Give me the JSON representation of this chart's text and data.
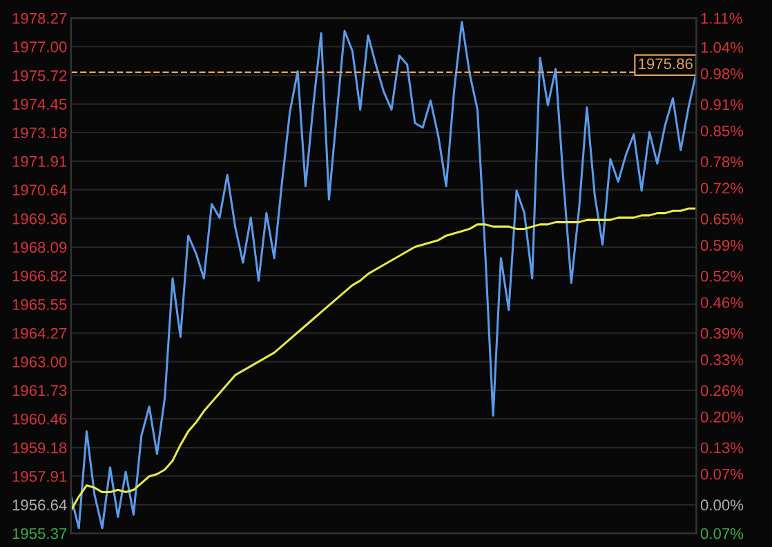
{
  "chart_data": {
    "type": "line",
    "grid": "y",
    "categories": [
      null,
      null,
      null,
      null,
      null,
      null,
      null,
      null,
      null,
      null,
      null,
      null,
      null,
      null,
      null,
      null,
      null,
      null,
      null,
      null,
      null,
      null,
      null,
      null,
      null,
      null,
      null,
      null,
      null,
      null,
      null,
      null,
      null,
      null,
      null,
      null,
      null,
      null,
      null,
      null,
      null,
      null,
      null,
      null,
      null,
      null,
      null,
      null,
      null,
      null,
      null,
      null,
      null,
      null,
      null,
      null,
      null,
      null,
      null,
      null,
      null,
      null,
      null,
      null,
      null,
      null,
      null,
      null,
      null,
      null,
      null,
      null,
      null,
      null,
      null,
      null,
      null,
      null,
      null,
      null,
      null
    ],
    "ylim": [
      1955.37,
      1978.27
    ],
    "yticks": [
      1955.37,
      1956.64,
      1957.91,
      1959.18,
      1960.46,
      1961.73,
      {
        "value": 1963,
        "label": "1963.00"
      },
      1964.27,
      1965.55,
      1966.82,
      1968.09,
      1969.36,
      1970.64,
      1971.91,
      1973.18,
      1974.45,
      1975.72,
      {
        "value": 1977,
        "label": "1977.00"
      },
      1978.27
    ],
    "y2lim": [
      -0.065,
      1.106
    ],
    "y2ticks": [
      {
        "value": -0.065,
        "label": "0.07%"
      },
      {
        "value": 0,
        "label": "0.00%"
      },
      {
        "value": 0.07,
        "label": "0.07%"
      },
      {
        "value": 0.13,
        "label": "0.13%"
      },
      {
        "value": 0.2,
        "label": "0.20%"
      },
      {
        "value": 0.26,
        "label": "0.26%"
      },
      {
        "value": 0.33,
        "label": "0.33%"
      },
      {
        "value": 0.39,
        "label": "0.39%"
      },
      {
        "value": 0.46,
        "label": "0.46%"
      },
      {
        "value": 0.52,
        "label": "0.52%"
      },
      {
        "value": 0.59,
        "label": "0.59%"
      },
      {
        "value": 0.65,
        "label": "0.65%"
      },
      {
        "value": 0.72,
        "label": "0.72%"
      },
      {
        "value": 0.78,
        "label": "0.78%"
      },
      {
        "value": 0.85,
        "label": "0.85%"
      },
      {
        "value": 0.91,
        "label": "0.91%"
      },
      {
        "value": 0.98,
        "label": "0.98%"
      },
      {
        "value": 1.04,
        "label": "1.04%"
      },
      {
        "value": 1.106,
        "label": "1.11%"
      }
    ],
    "ref_lines": [
      {
        "axis": "y",
        "value": 1975.86,
        "label": "1975.86",
        "color": "#e0a060",
        "line_style": "dashed"
      }
    ],
    "series": [
      {
        "color": "#5b9bea",
        "values": [
          1957.0,
          1955.6,
          1959.9,
          1957.1,
          1955.6,
          1958.3,
          1956.1,
          1958.1,
          1956.2,
          1959.7,
          1961.0,
          1958.9,
          1961.4,
          1966.7,
          1964.1,
          1968.6,
          1967.8,
          1966.7,
          1970.0,
          1969.4,
          1971.3,
          1969.0,
          1967.4,
          1969.4,
          1966.6,
          1969.6,
          1967.6,
          1971.0,
          1974.1,
          1975.9,
          1970.8,
          1974.4,
          1977.6,
          1970.2,
          1974.0,
          1977.7,
          1976.8,
          1974.2,
          1977.5,
          1976.2,
          1975.0,
          1974.2,
          1976.6,
          1976.2,
          1973.6,
          1973.4,
          1974.6,
          1973.0,
          1970.8,
          1975.0,
          1978.1,
          1975.8,
          1974.2,
          1967.8,
          1960.6,
          1967.6,
          1965.3,
          1970.6,
          1969.6,
          1966.7,
          1976.5,
          1974.4,
          1976.0,
          1971.0,
          1966.5,
          1969.8,
          1974.3,
          1970.4,
          1968.2,
          1972.0,
          1971.0,
          1972.2,
          1973.1,
          1970.6,
          1973.2,
          1971.8,
          1973.5,
          1974.7,
          1972.4,
          1974.3,
          1975.86
        ]
      },
      {
        "color": "#e8e84a",
        "values": [
          1956.4,
          1957.0,
          1957.5,
          1957.4,
          1957.2,
          1957.2,
          1957.3,
          1957.2,
          1957.3,
          1957.6,
          1957.9,
          1958.0,
          1958.2,
          1958.6,
          1959.3,
          1959.9,
          1960.3,
          1960.8,
          1961.2,
          1961.6,
          1962.0,
          1962.4,
          1962.6,
          1962.8,
          1963.0,
          1963.2,
          1963.4,
          1963.7,
          1964.0,
          1964.3,
          1964.6,
          1964.9,
          1965.2,
          1965.5,
          1965.8,
          1966.1,
          1966.4,
          1966.6,
          1966.9,
          1967.1,
          1967.3,
          1967.5,
          1967.7,
          1967.9,
          1968.1,
          1968.2,
          1968.3,
          1968.4,
          1968.6,
          1968.7,
          1968.8,
          1968.9,
          1969.1,
          1969.1,
          1969.0,
          1969.0,
          1969.0,
          1968.9,
          1968.9,
          1969.0,
          1969.1,
          1969.1,
          1969.2,
          1969.2,
          1969.2,
          1969.2,
          1969.3,
          1969.3,
          1969.3,
          1969.3,
          1969.4,
          1969.4,
          1969.4,
          1969.5,
          1969.5,
          1969.6,
          1969.6,
          1969.7,
          1969.7,
          1969.8,
          1969.8
        ]
      }
    ]
  }
}
